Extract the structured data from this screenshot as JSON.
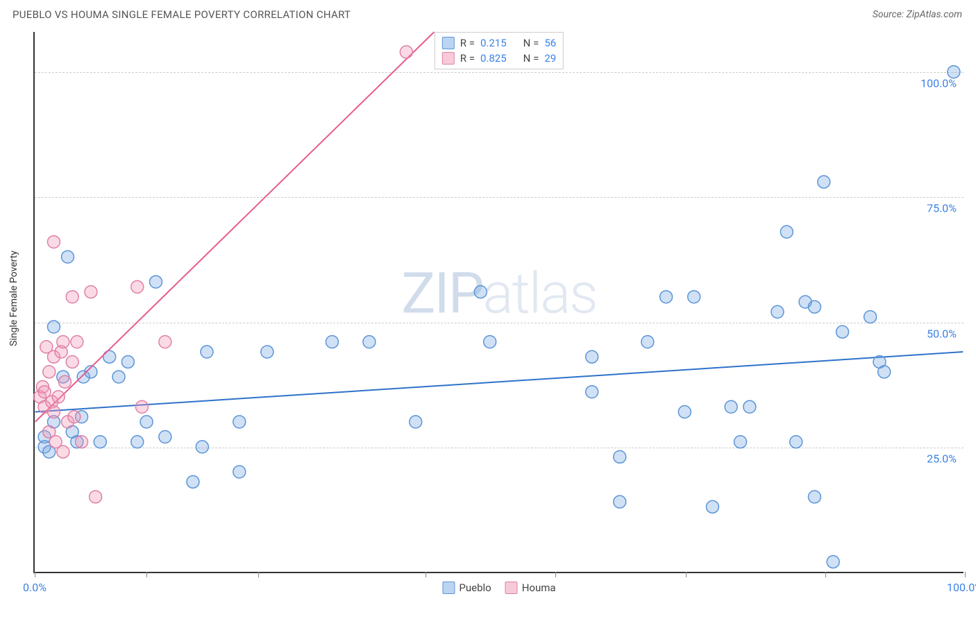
{
  "title": "PUEBLO VS HOUMA SINGLE FEMALE POVERTY CORRELATION CHART",
  "source": "Source: ZipAtlas.com",
  "ylabel": "Single Female Poverty",
  "watermark_left": "ZIP",
  "watermark_right": "atlas",
  "chart": {
    "type": "scatter",
    "xlim": [
      0,
      100
    ],
    "ylim": [
      0,
      108
    ],
    "ytick_values": [
      25,
      50,
      75,
      100
    ],
    "ytick_labels": [
      "25.0%",
      "50.0%",
      "75.0%",
      "100.0%"
    ],
    "xtick_values": [
      0,
      12,
      24,
      42,
      56,
      70,
      85,
      100
    ],
    "xaxis_labels": {
      "left": "0.0%",
      "right": "100.0%"
    },
    "grid_color": "#cccccc",
    "background_color": "#ffffff",
    "axis_color": "#333333",
    "marker_radius": 9,
    "marker_stroke_width": 1.5,
    "line_width": 2,
    "series": [
      {
        "name": "Pueblo",
        "color_fill": "rgba(120, 170, 230, 0.35)",
        "color_stroke": "#5b94d6",
        "line_color": "#2d72c9",
        "R": "0.215",
        "N": "56",
        "regression": {
          "x1": 0,
          "y1": 32,
          "x2": 100,
          "y2": 44
        },
        "points": [
          [
            1,
            27
          ],
          [
            1,
            25
          ],
          [
            1.5,
            24
          ],
          [
            2,
            30
          ],
          [
            2,
            49
          ],
          [
            3,
            39
          ],
          [
            3.5,
            63
          ],
          [
            4,
            28
          ],
          [
            4.5,
            26
          ],
          [
            5,
            31
          ],
          [
            5.2,
            39
          ],
          [
            6,
            40
          ],
          [
            7,
            26
          ],
          [
            8,
            43
          ],
          [
            9,
            39
          ],
          [
            10,
            42
          ],
          [
            11,
            26
          ],
          [
            12,
            30
          ],
          [
            13,
            58
          ],
          [
            14,
            27
          ],
          [
            17,
            18
          ],
          [
            18,
            25
          ],
          [
            18.5,
            44
          ],
          [
            22,
            30
          ],
          [
            22,
            20
          ],
          [
            25,
            44
          ],
          [
            32,
            46
          ],
          [
            36,
            46
          ],
          [
            41,
            30
          ],
          [
            48,
            56
          ],
          [
            49,
            46
          ],
          [
            60,
            36
          ],
          [
            60,
            43
          ],
          [
            63,
            14
          ],
          [
            63,
            23
          ],
          [
            66,
            46
          ],
          [
            68,
            55
          ],
          [
            70,
            32
          ],
          [
            71,
            55
          ],
          [
            73,
            13
          ],
          [
            75,
            33
          ],
          [
            76,
            26
          ],
          [
            77,
            33
          ],
          [
            80,
            52
          ],
          [
            81,
            68
          ],
          [
            82,
            26
          ],
          [
            83,
            54
          ],
          [
            84,
            15
          ],
          [
            84,
            53
          ],
          [
            85,
            78
          ],
          [
            86,
            2
          ],
          [
            87,
            48
          ],
          [
            90,
            51
          ],
          [
            91,
            42
          ],
          [
            91.5,
            40
          ],
          [
            99,
            100
          ]
        ]
      },
      {
        "name": "Houma",
        "color_fill": "rgba(240, 150, 180, 0.35)",
        "color_stroke": "#e07fa6",
        "line_color": "#e85a8f",
        "R": "0.825",
        "N": "29",
        "regression": {
          "x1": 0,
          "y1": 30,
          "x2": 43,
          "y2": 108
        },
        "points": [
          [
            0.5,
            35
          ],
          [
            0.8,
            37
          ],
          [
            1,
            33
          ],
          [
            1,
            36
          ],
          [
            1.2,
            45
          ],
          [
            1.5,
            28
          ],
          [
            1.5,
            40
          ],
          [
            1.8,
            34
          ],
          [
            2,
            32
          ],
          [
            2,
            43
          ],
          [
            2,
            66
          ],
          [
            2.2,
            26
          ],
          [
            2.5,
            35
          ],
          [
            2.8,
            44
          ],
          [
            3,
            24
          ],
          [
            3,
            46
          ],
          [
            3.2,
            38
          ],
          [
            3.5,
            30
          ],
          [
            4,
            55
          ],
          [
            4,
            42
          ],
          [
            4.2,
            31
          ],
          [
            4.5,
            46
          ],
          [
            5,
            26
          ],
          [
            6,
            56
          ],
          [
            6.5,
            15
          ],
          [
            11,
            57
          ],
          [
            11.5,
            33
          ],
          [
            14,
            46
          ],
          [
            40,
            104
          ]
        ]
      }
    ]
  },
  "legend": {
    "top_rows": [
      {
        "swatch_fill": "rgba(120,170,230,0.5)",
        "swatch_stroke": "#5b94d6",
        "r_label": "R =",
        "r_val": "0.215",
        "n_label": "N =",
        "n_val": "56"
      },
      {
        "swatch_fill": "rgba(240,150,180,0.5)",
        "swatch_stroke": "#e07fa6",
        "r_label": "R =",
        "r_val": "0.825",
        "n_label": "N =",
        "n_val": "29"
      }
    ],
    "bottom_items": [
      {
        "swatch_fill": "rgba(120,170,230,0.5)",
        "swatch_stroke": "#5b94d6",
        "label": "Pueblo"
      },
      {
        "swatch_fill": "rgba(240,150,180,0.5)",
        "swatch_stroke": "#e07fa6",
        "label": "Houma"
      }
    ]
  }
}
